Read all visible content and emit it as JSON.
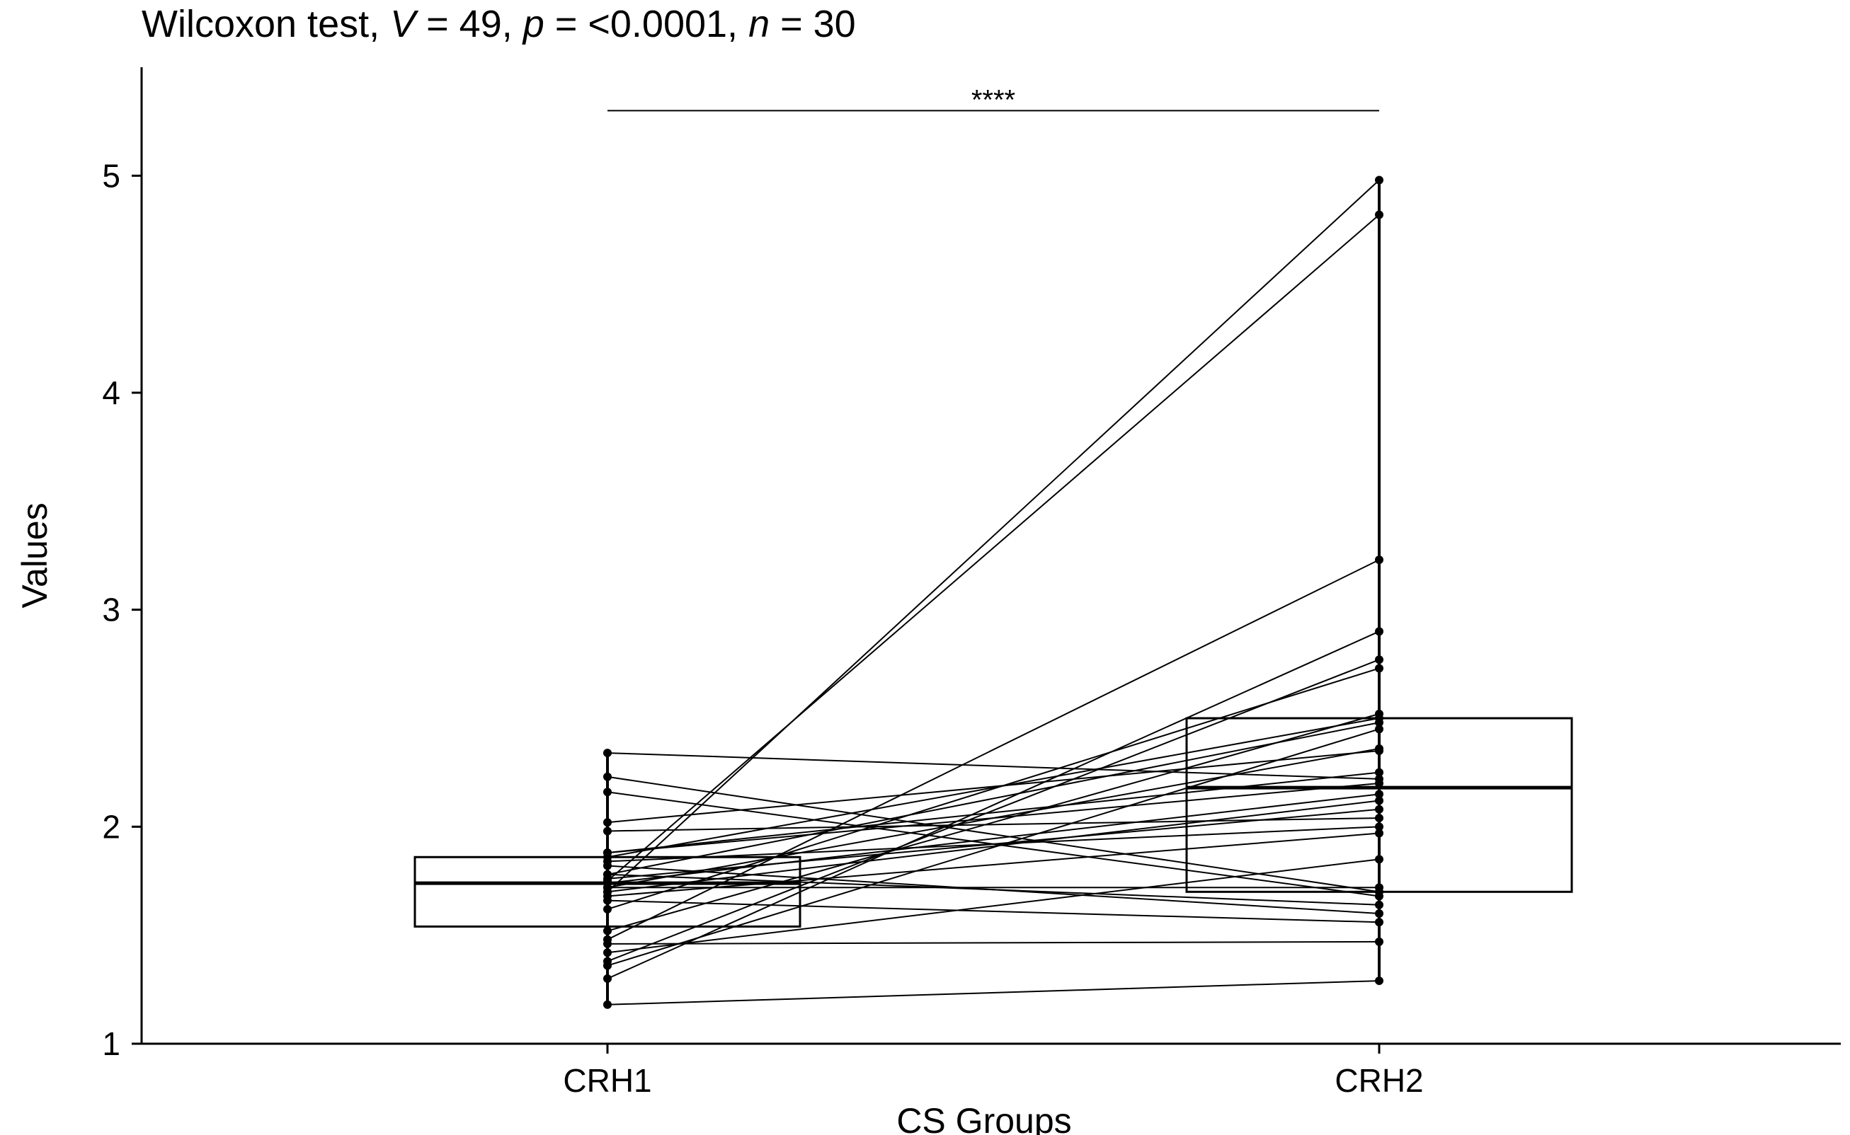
{
  "chart_data": {
    "type": "paired-boxplot",
    "title_parts": [
      {
        "text": "Wilcoxon test, ",
        "italic": false
      },
      {
        "text": "V",
        "italic": true
      },
      {
        "text": " = 49, ",
        "italic": false
      },
      {
        "text": "p",
        "italic": true
      },
      {
        "text": " = <0.0001, ",
        "italic": false
      },
      {
        "text": "n",
        "italic": true
      },
      {
        "text": " = 30",
        "italic": false
      }
    ],
    "xlabel": "CS Groups",
    "ylabel": "Values",
    "categories": [
      "CRH1",
      "CRH2"
    ],
    "ylim": [
      1,
      5.5
    ],
    "yticks": [
      1,
      2,
      3,
      4,
      5
    ],
    "significance": {
      "label": "****",
      "from": "CRH1",
      "to": "CRH2",
      "y": 5.3
    },
    "boxes": [
      {
        "group": "CRH1",
        "q1": 1.54,
        "median": 1.74,
        "q3": 1.86
      },
      {
        "group": "CRH2",
        "q1": 1.7,
        "median": 2.18,
        "q3": 2.5
      }
    ],
    "pairs": [
      {
        "CRH1": 1.7,
        "CRH2": 4.98
      },
      {
        "CRH1": 1.75,
        "CRH2": 4.82
      },
      {
        "CRH1": 1.48,
        "CRH2": 3.23
      },
      {
        "CRH1": 1.3,
        "CRH2": 2.9
      },
      {
        "CRH1": 1.38,
        "CRH2": 2.77
      },
      {
        "CRH1": 1.62,
        "CRH2": 2.73
      },
      {
        "CRH1": 1.52,
        "CRH2": 2.52
      },
      {
        "CRH1": 1.86,
        "CRH2": 2.5
      },
      {
        "CRH1": 1.78,
        "CRH2": 2.48
      },
      {
        "CRH1": 1.36,
        "CRH2": 2.45
      },
      {
        "CRH1": 2.02,
        "CRH2": 2.35
      },
      {
        "CRH1": 1.72,
        "CRH2": 2.36
      },
      {
        "CRH1": 1.88,
        "CRH2": 2.25
      },
      {
        "CRH1": 2.34,
        "CRH2": 2.22
      },
      {
        "CRH1": 1.88,
        "CRH2": 2.2
      },
      {
        "CRH1": 1.74,
        "CRH2": 2.15
      },
      {
        "CRH1": 1.7,
        "CRH2": 2.12
      },
      {
        "CRH1": 1.76,
        "CRH2": 2.08
      },
      {
        "CRH1": 1.98,
        "CRH2": 2.04
      },
      {
        "CRH1": 1.84,
        "CRH2": 2.0
      },
      {
        "CRH1": 1.68,
        "CRH2": 1.97
      },
      {
        "CRH1": 1.42,
        "CRH2": 1.85
      },
      {
        "CRH1": 1.72,
        "CRH2": 1.72
      },
      {
        "CRH1": 2.23,
        "CRH2": 1.7
      },
      {
        "CRH1": 2.16,
        "CRH2": 1.68
      },
      {
        "CRH1": 1.78,
        "CRH2": 1.64
      },
      {
        "CRH1": 1.82,
        "CRH2": 1.6
      },
      {
        "CRH1": 1.66,
        "CRH2": 1.56
      },
      {
        "CRH1": 1.46,
        "CRH2": 1.47
      },
      {
        "CRH1": 1.18,
        "CRH2": 1.29
      }
    ]
  }
}
